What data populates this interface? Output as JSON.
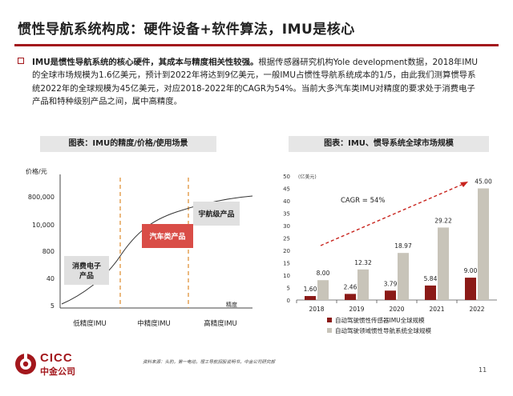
{
  "slide": {
    "title": "惯性导航系统构成：硬件设备+软件算法，IMU是核心",
    "bullet_lead": "IMU是惯性导航系统的核心硬件，其成本与精度相关性较强。",
    "bullet_body": "根据传感器研究机构Yole development数据，2018年IMU的全球市场规模为1.6亿美元，预计到2022年将达到9亿美元，一般IMU占惯性导航系统成本的1/5，由此我们测算惯导系统2022年的全球规模为45亿美元，对应2018-2022年的CAGR为54%。当前大多汽车类IMU对精度的要求处于消费电子产品和特种级别产品之间，属中高精度。",
    "left_panel_title": "图表：IMU的精度/价格/使用场景",
    "right_panel_title": "图表：IMU、惯导系统全球市场规模",
    "source": "资料来源：头豹，第一电动，理工导航招股说明书，中金公司研究部",
    "page_number": "11",
    "logo_text": "CICC",
    "logo_cn": "中金公司",
    "brand_color": "#a3171c"
  },
  "chart_data": [
    {
      "type": "line",
      "title": "",
      "ylabel": "价格/元",
      "xlabel": "精度",
      "y_ticks": [
        "5",
        "40",
        "800",
        "10,000",
        "800,000"
      ],
      "x_categories": [
        "低精度IMU",
        "中精度IMU",
        "高精度IMU"
      ],
      "boxes": [
        {
          "label": "消费电子\n产品",
          "color": "#e0e0e0",
          "text_color": "#222222"
        },
        {
          "label": "汽车类产品",
          "color": "#d94d47",
          "text_color": "#ffffff"
        },
        {
          "label": "宇航级产品",
          "color": "#e0e0e0",
          "text_color": "#222222"
        }
      ]
    },
    {
      "type": "bar",
      "title": "",
      "unit_label": "(亿美元)",
      "categories": [
        "2018",
        "2019",
        "2020",
        "2021",
        "2022"
      ],
      "ylim": [
        0,
        50
      ],
      "y_ticks": [
        0,
        5,
        10,
        15,
        20,
        25,
        30,
        35,
        40,
        45,
        50
      ],
      "annotation": "CAGR = 54%",
      "series": [
        {
          "name": "自动驾驶惯性传感器IMU全球规模",
          "color": "#8b1a17",
          "values": [
            1.6,
            2.46,
            3.79,
            5.84,
            9.0
          ],
          "labels": [
            "1.60",
            "2.46",
            "3.79",
            "5.84",
            "9.00"
          ]
        },
        {
          "name": "自动驾驶领域惯性导航系统全球规模",
          "color": "#c8c4b9",
          "values": [
            8.0,
            12.32,
            18.97,
            29.22,
            45.0
          ],
          "labels": [
            "8.00",
            "12.32",
            "18.97",
            "29.22",
            "45.00"
          ]
        }
      ]
    }
  ]
}
